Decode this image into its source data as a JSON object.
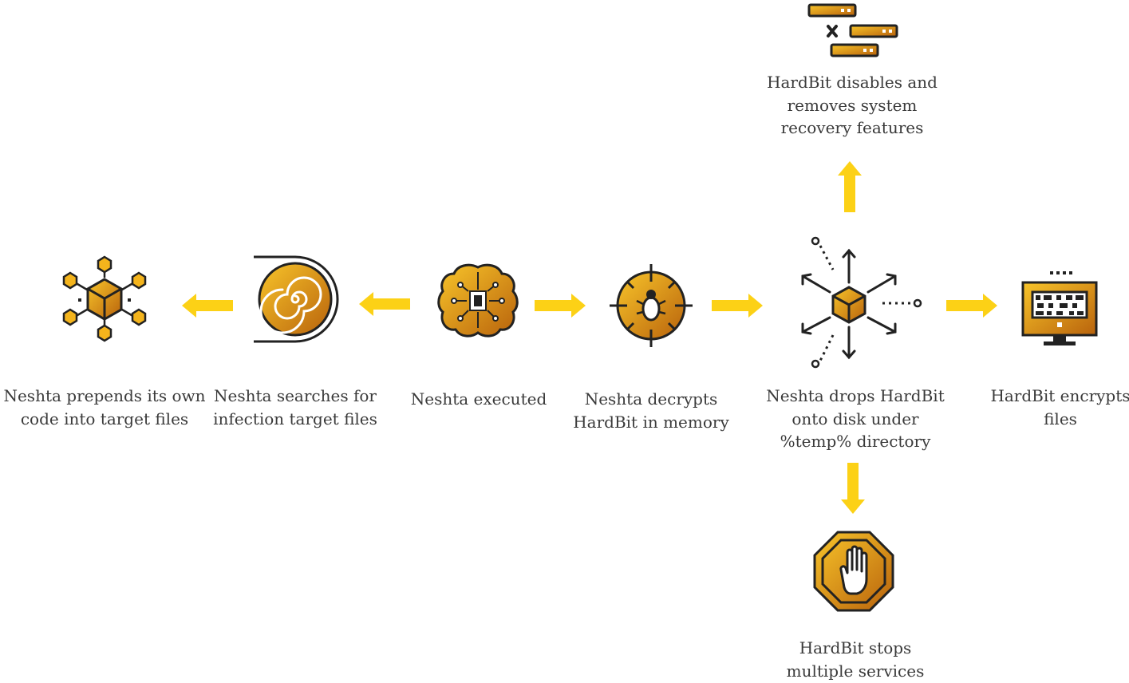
{
  "colors": {
    "arrow": "#fcd116",
    "icon_fill_light": "#f4b41c",
    "icon_fill_dark": "#b8620c",
    "outline": "#222222",
    "text": "#3a3a3a"
  },
  "nodes": {
    "prepend": {
      "icon": "network-cube-icon",
      "lines": [
        "Neshta prepends its own",
        "code into target files"
      ]
    },
    "search": {
      "icon": "spiral-disc-icon",
      "lines": [
        "Neshta searches for",
        "infection target files"
      ]
    },
    "executed": {
      "icon": "brain-chip-icon",
      "lines": [
        "Neshta executed"
      ]
    },
    "decrypt": {
      "icon": "bug-target-icon",
      "lines": [
        "Neshta decrypts",
        "HardBit in memory"
      ]
    },
    "drop": {
      "icon": "cube-explode-icon",
      "lines": [
        "Neshta drops HardBit",
        "onto disk under",
        "%temp% directory"
      ]
    },
    "encrypt": {
      "icon": "encrypted-monitor-icon",
      "lines": [
        "HardBit encrypts",
        "files"
      ]
    },
    "recovery": {
      "icon": "removed-blocks-icon",
      "lines": [
        "HardBit disables and",
        "removes system",
        "recovery features"
      ]
    },
    "services": {
      "icon": "stop-hand-icon",
      "lines": [
        "HardBit stops",
        "multiple services"
      ]
    }
  }
}
